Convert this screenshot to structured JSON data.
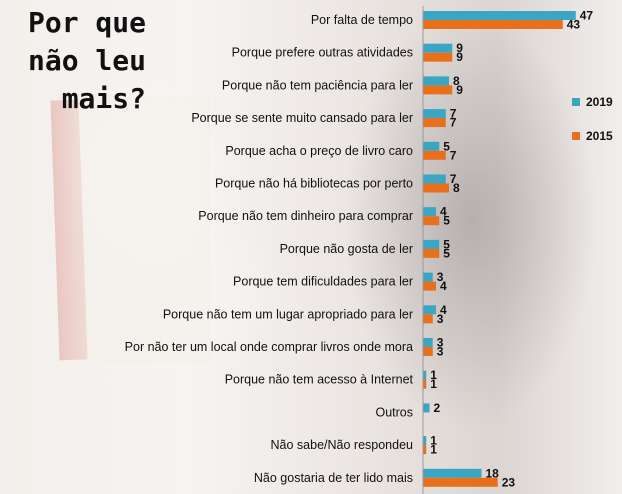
{
  "chart_data": {
    "type": "bar",
    "orientation": "horizontal",
    "title": "Por que não leu mais?",
    "categories": [
      "Por falta de tempo",
      "Porque prefere outras atividades",
      "Porque não tem paciência para ler",
      "Porque se sente muito cansado para ler",
      "Porque acha o preço de livro caro",
      "Porque não há bibliotecas por perto",
      "Porque não tem dinheiro para comprar",
      "Porque não gosta de ler",
      "Porque tem dificuldades para ler",
      "Porque não tem um lugar apropriado para ler",
      "Por não ter um local onde comprar livros onde mora",
      "Porque não tem acesso à Internet",
      "Outros",
      "Não sabe/Não respondeu",
      "Não gostaria de ter lido mais"
    ],
    "series": [
      {
        "name": "2019",
        "color": "#3ba6c4",
        "values": [
          47,
          9,
          8,
          7,
          5,
          7,
          4,
          5,
          3,
          4,
          3,
          1,
          2,
          1,
          18
        ]
      },
      {
        "name": "2015",
        "color": "#e8701c",
        "values": [
          43,
          9,
          9,
          7,
          7,
          8,
          5,
          5,
          4,
          3,
          3,
          1,
          null,
          1,
          23
        ]
      }
    ],
    "legend_position": "right",
    "grid": false
  }
}
